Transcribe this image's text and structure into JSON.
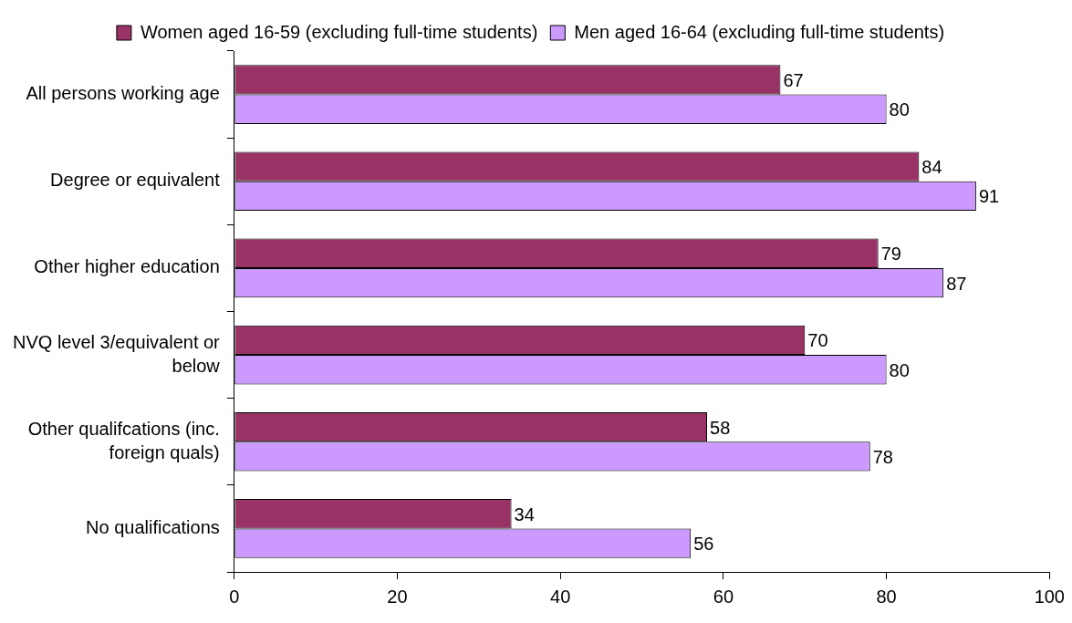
{
  "chart_data": {
    "type": "bar",
    "orientation": "horizontal",
    "categories": [
      "All persons working age",
      "Degree or equivalent",
      "Other higher education",
      "NVQ level 3/equivalent or below",
      "Other qualifcations (inc. foreign quals)",
      "No qualifications"
    ],
    "series": [
      {
        "name": "Women aged 16-59 (excluding full-time students)",
        "color": "#993366",
        "values": [
          67,
          84,
          79,
          70,
          58,
          34
        ]
      },
      {
        "name": "Men aged 16-64 (excluding full-time students)",
        "color": "#cc99ff",
        "values": [
          80,
          91,
          87,
          80,
          78,
          56
        ]
      }
    ],
    "xlim": [
      0,
      100
    ],
    "xticks": [
      0,
      20,
      40,
      60,
      80,
      100
    ],
    "grid": false,
    "legend": "top",
    "data_labels": true
  }
}
